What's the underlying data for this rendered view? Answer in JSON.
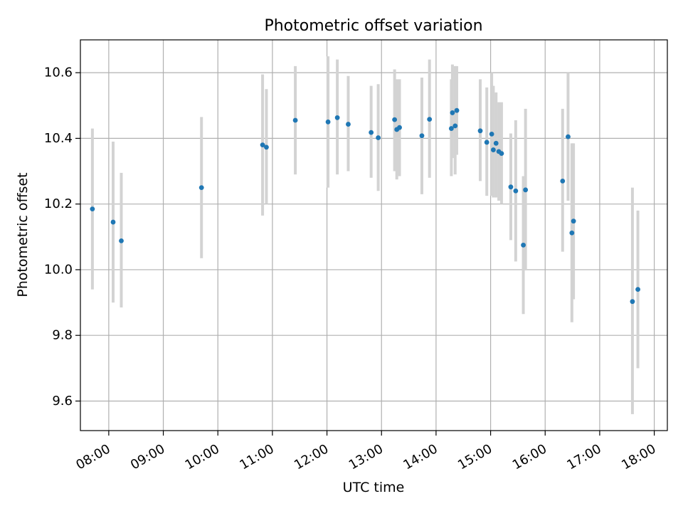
{
  "colors": {
    "point": "#1f77b4",
    "errorbar": "#d3d3d3",
    "grid": "#b0b0b0",
    "axes": "#000000",
    "background": "#ffffff"
  },
  "chart_data": {
    "type": "scatter",
    "title": "Photometric offset variation",
    "xlabel": "UTC time",
    "ylabel": "Photometric offset",
    "x_unit": "UTC hour",
    "xlim": [
      7.48,
      18.24
    ],
    "ylim": [
      9.51,
      10.7
    ],
    "grid": true,
    "legend": "none",
    "x_ticks": [
      {
        "value": 8,
        "label": "08:00"
      },
      {
        "value": 9,
        "label": "09:00"
      },
      {
        "value": 10,
        "label": "10:00"
      },
      {
        "value": 11,
        "label": "11:00"
      },
      {
        "value": 12,
        "label": "12:00"
      },
      {
        "value": 13,
        "label": "13:00"
      },
      {
        "value": 14,
        "label": "14:00"
      },
      {
        "value": 15,
        "label": "15:00"
      },
      {
        "value": 16,
        "label": "16:00"
      },
      {
        "value": 17,
        "label": "17:00"
      },
      {
        "value": 18,
        "label": "18:00"
      }
    ],
    "y_ticks": [
      {
        "value": 9.6,
        "label": "9.6"
      },
      {
        "value": 9.8,
        "label": "9.8"
      },
      {
        "value": 10.0,
        "label": "10.0"
      },
      {
        "value": 10.2,
        "label": "10.2"
      },
      {
        "value": 10.4,
        "label": "10.4"
      },
      {
        "value": 10.6,
        "label": "10.6"
      }
    ],
    "series": [
      {
        "points": [
          {
            "t": "07:42",
            "x": 7.7,
            "y": 10.185,
            "ylow": 9.94,
            "yhigh": 10.43
          },
          {
            "t": "08:05",
            "x": 8.08,
            "y": 10.145,
            "ylow": 9.9,
            "yhigh": 10.39
          },
          {
            "t": "08:14",
            "x": 8.23,
            "y": 10.088,
            "ylow": 9.885,
            "yhigh": 10.295
          },
          {
            "t": "09:42",
            "x": 9.7,
            "y": 10.25,
            "ylow": 10.035,
            "yhigh": 10.465
          },
          {
            "t": "10:49",
            "x": 10.82,
            "y": 10.38,
            "ylow": 10.165,
            "yhigh": 10.595
          },
          {
            "t": "10:53",
            "x": 10.89,
            "y": 10.373,
            "ylow": 10.2,
            "yhigh": 10.55
          },
          {
            "t": "11:25",
            "x": 11.42,
            "y": 10.455,
            "ylow": 10.29,
            "yhigh": 10.62
          },
          {
            "t": "12:01",
            "x": 12.02,
            "y": 10.45,
            "ylow": 10.25,
            "yhigh": 10.65
          },
          {
            "t": "12:11",
            "x": 12.19,
            "y": 10.463,
            "ylow": 10.29,
            "yhigh": 10.64
          },
          {
            "t": "12:24",
            "x": 12.39,
            "y": 10.443,
            "ylow": 10.3,
            "yhigh": 10.59
          },
          {
            "t": "12:48",
            "x": 12.81,
            "y": 10.418,
            "ylow": 10.28,
            "yhigh": 10.56
          },
          {
            "t": "12:56",
            "x": 12.94,
            "y": 10.402,
            "ylow": 10.24,
            "yhigh": 10.565
          },
          {
            "t": "13:14",
            "x": 13.24,
            "y": 10.457,
            "ylow": 10.3,
            "yhigh": 10.61
          },
          {
            "t": "13:17",
            "x": 13.28,
            "y": 10.427,
            "ylow": 10.275,
            "yhigh": 10.58
          },
          {
            "t": "13:20",
            "x": 13.33,
            "y": 10.433,
            "ylow": 10.285,
            "yhigh": 10.58
          },
          {
            "t": "13:44",
            "x": 13.74,
            "y": 10.408,
            "ylow": 10.23,
            "yhigh": 10.585
          },
          {
            "t": "13:53",
            "x": 13.88,
            "y": 10.458,
            "ylow": 10.28,
            "yhigh": 10.64
          },
          {
            "t": "14:17",
            "x": 14.28,
            "y": 10.43,
            "ylow": 10.285,
            "yhigh": 10.58
          },
          {
            "t": "14:18",
            "x": 14.3,
            "y": 10.478,
            "ylow": 10.34,
            "yhigh": 10.625
          },
          {
            "t": "14:21",
            "x": 14.35,
            "y": 10.438,
            "ylow": 10.29,
            "yhigh": 10.62
          },
          {
            "t": "14:23",
            "x": 14.38,
            "y": 10.485,
            "ylow": 10.35,
            "yhigh": 10.62
          },
          {
            "t": "14:49",
            "x": 14.81,
            "y": 10.423,
            "ylow": 10.27,
            "yhigh": 10.58
          },
          {
            "t": "14:56",
            "x": 14.93,
            "y": 10.388,
            "ylow": 10.225,
            "yhigh": 10.555
          },
          {
            "t": "15:01",
            "x": 15.02,
            "y": 10.413,
            "ylow": 10.225,
            "yhigh": 10.6
          },
          {
            "t": "15:03",
            "x": 15.05,
            "y": 10.365,
            "ylow": 10.22,
            "yhigh": 10.56
          },
          {
            "t": "15:06",
            "x": 15.1,
            "y": 10.385,
            "ylow": 10.22,
            "yhigh": 10.54
          },
          {
            "t": "15:09",
            "x": 15.15,
            "y": 10.36,
            "ylow": 10.21,
            "yhigh": 10.51
          },
          {
            "t": "15:12",
            "x": 15.2,
            "y": 10.354,
            "ylow": 10.2,
            "yhigh": 10.51
          },
          {
            "t": "15:22",
            "x": 15.37,
            "y": 10.252,
            "ylow": 10.09,
            "yhigh": 10.415
          },
          {
            "t": "15:27",
            "x": 15.46,
            "y": 10.24,
            "ylow": 10.025,
            "yhigh": 10.455
          },
          {
            "t": "15:36",
            "x": 15.6,
            "y": 10.075,
            "ylow": 9.865,
            "yhigh": 10.285
          },
          {
            "t": "15:38",
            "x": 15.64,
            "y": 10.243,
            "ylow": 10.0,
            "yhigh": 10.49
          },
          {
            "t": "16:19",
            "x": 16.32,
            "y": 10.27,
            "ylow": 10.055,
            "yhigh": 10.49
          },
          {
            "t": "16:25",
            "x": 16.42,
            "y": 10.405,
            "ylow": 10.21,
            "yhigh": 10.6
          },
          {
            "t": "16:29",
            "x": 16.49,
            "y": 10.112,
            "ylow": 9.84,
            "yhigh": 10.385
          },
          {
            "t": "16:31",
            "x": 16.52,
            "y": 10.148,
            "ylow": 9.91,
            "yhigh": 10.385
          },
          {
            "t": "17:36",
            "x": 17.6,
            "y": 9.903,
            "ylow": 9.56,
            "yhigh": 10.25
          },
          {
            "t": "17:42",
            "x": 17.7,
            "y": 9.94,
            "ylow": 9.7,
            "yhigh": 10.18
          }
        ]
      }
    ]
  }
}
